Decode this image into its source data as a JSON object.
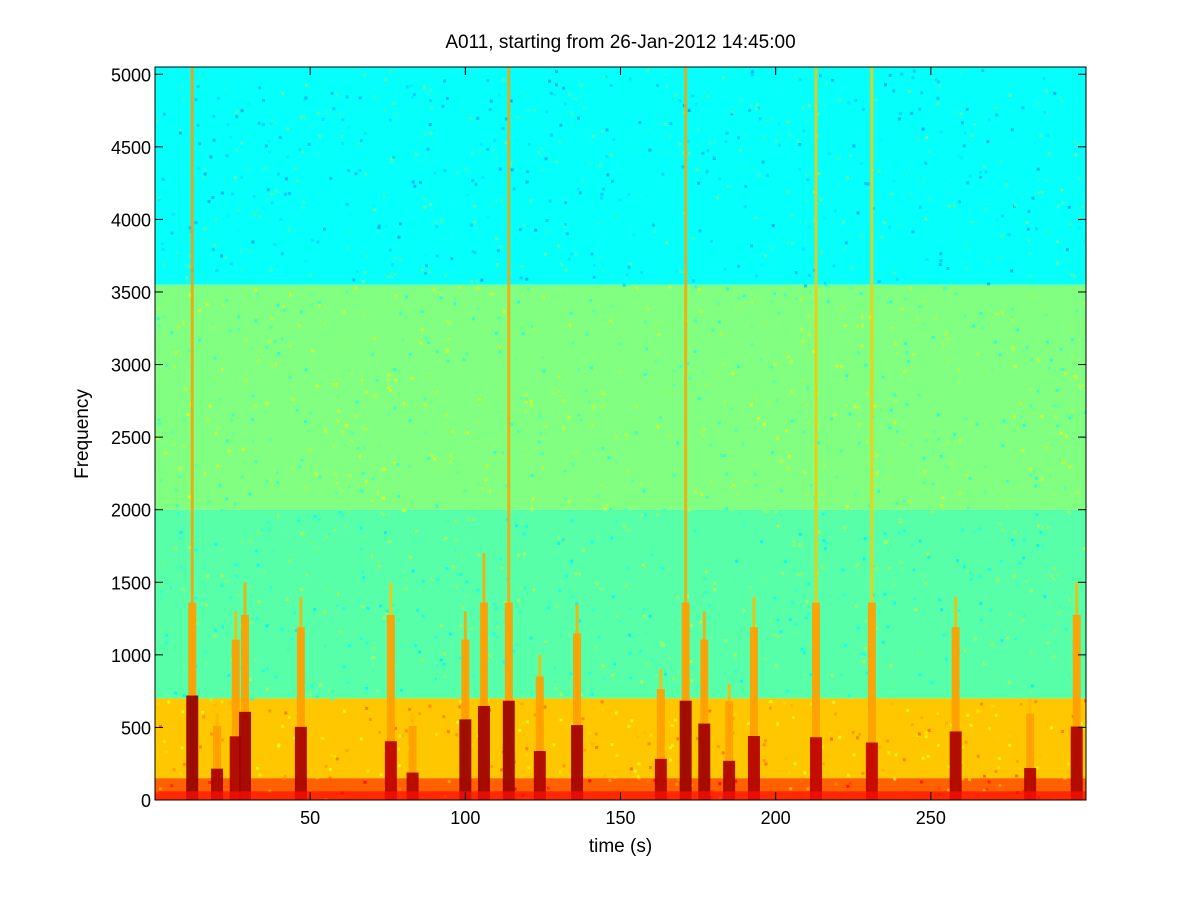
{
  "chart_data": {
    "type": "heatmap",
    "title": "A011, starting from 26-Jan-2012 14:45:00",
    "xlabel": "time (s)",
    "ylabel": "Frequency",
    "xlim": [
      0,
      300
    ],
    "ylim": [
      0,
      5050
    ],
    "xticks": [
      50,
      100,
      150,
      200,
      250
    ],
    "yticks": [
      0,
      500,
      1000,
      1500,
      2000,
      2500,
      3000,
      3500,
      4000,
      4500,
      5000
    ],
    "colormap": "jet",
    "colors": {
      "background": "#00c8e0",
      "mid_band": "#40e8a8",
      "low_band": "#ffff20",
      "hot": "#d80000"
    },
    "bands": [
      {
        "freq_from": 3550,
        "freq_to": 5050,
        "level": 0.38
      },
      {
        "freq_from": 2000,
        "freq_to": 3550,
        "level": 0.5
      },
      {
        "freq_from": 700,
        "freq_to": 2000,
        "level": 0.46
      },
      {
        "freq_from": 150,
        "freq_to": 700,
        "level": 0.68
      },
      {
        "freq_from": 0,
        "freq_to": 150,
        "level": 0.78
      }
    ],
    "events": [
      {
        "t": 12,
        "peak_freq": 5050,
        "intensity": 1.0
      },
      {
        "t": 20,
        "peak_freq": 600,
        "intensity": 0.8
      },
      {
        "t": 26,
        "peak_freq": 1300,
        "intensity": 0.75
      },
      {
        "t": 29,
        "peak_freq": 1500,
        "intensity": 0.9
      },
      {
        "t": 47,
        "peak_freq": 1400,
        "intensity": 0.8
      },
      {
        "t": 76,
        "peak_freq": 1500,
        "intensity": 0.6
      },
      {
        "t": 83,
        "peak_freq": 600,
        "intensity": 0.7
      },
      {
        "t": 100,
        "peak_freq": 1300,
        "intensity": 0.95
      },
      {
        "t": 106,
        "peak_freq": 1700,
        "intensity": 0.9
      },
      {
        "t": 114,
        "peak_freq": 5050,
        "intensity": 0.95
      },
      {
        "t": 124,
        "peak_freq": 1000,
        "intensity": 0.75
      },
      {
        "t": 136,
        "peak_freq": 1350,
        "intensity": 0.85
      },
      {
        "t": 163,
        "peak_freq": 900,
        "intensity": 0.7
      },
      {
        "t": 171,
        "peak_freq": 5050,
        "intensity": 0.95
      },
      {
        "t": 177,
        "peak_freq": 1300,
        "intensity": 0.9
      },
      {
        "t": 185,
        "peak_freq": 800,
        "intensity": 0.75
      },
      {
        "t": 193,
        "peak_freq": 1400,
        "intensity": 0.7
      },
      {
        "t": 213,
        "peak_freq": 5050,
        "intensity": 0.6
      },
      {
        "t": 231,
        "peak_freq": 5050,
        "intensity": 0.55
      },
      {
        "t": 258,
        "peak_freq": 1400,
        "intensity": 0.75
      },
      {
        "t": 282,
        "peak_freq": 700,
        "intensity": 0.7
      },
      {
        "t": 297,
        "peak_freq": 1500,
        "intensity": 0.75
      }
    ]
  }
}
